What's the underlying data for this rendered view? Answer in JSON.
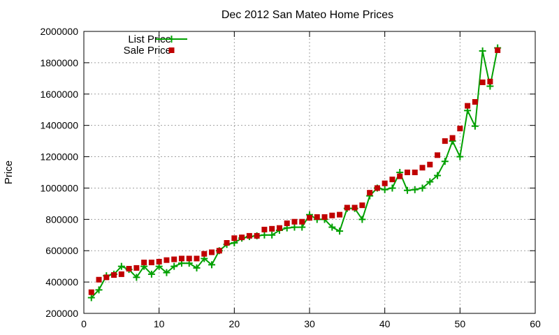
{
  "chart_data": {
    "type": "line",
    "title": "Dec 2012 San Mateo Home Prices",
    "xlabel": "",
    "ylabel": "Price",
    "xlim": [
      0,
      60
    ],
    "ylim": [
      200000,
      2000000
    ],
    "x_ticks": [
      "0",
      "10",
      "20",
      "30",
      "40",
      "50",
      "60"
    ],
    "y_ticks": [
      "200000",
      "400000",
      "600000",
      "800000",
      "1000000",
      "1200000",
      "1400000",
      "1600000",
      "1800000",
      "2000000"
    ],
    "grid": true,
    "legend_position": "top-left",
    "series": [
      {
        "name": "List Price",
        "style": "line-with-plus-markers",
        "color": "#00a000",
        "x": [
          1,
          2,
          3,
          4,
          5,
          6,
          7,
          8,
          9,
          10,
          11,
          12,
          13,
          14,
          15,
          16,
          17,
          18,
          19,
          20,
          21,
          22,
          23,
          24,
          25,
          26,
          27,
          28,
          29,
          30,
          31,
          32,
          33,
          34,
          35,
          36,
          37,
          38,
          39,
          40,
          41,
          42,
          43,
          44,
          45,
          46,
          47,
          48,
          49,
          50,
          51,
          52,
          53,
          54,
          55
        ],
        "y": [
          300000,
          350000,
          440000,
          450000,
          500000,
          480000,
          430000,
          500000,
          450000,
          500000,
          460000,
          500000,
          520000,
          520000,
          490000,
          550000,
          510000,
          600000,
          640000,
          650000,
          680000,
          690000,
          695000,
          700000,
          700000,
          730000,
          745000,
          750000,
          750000,
          830000,
          800000,
          800000,
          750000,
          725000,
          870000,
          870000,
          800000,
          950000,
          1000000,
          990000,
          1000000,
          1100000,
          985000,
          990000,
          1000000,
          1040000,
          1080000,
          1170000,
          1300000,
          1200000,
          1495000,
          1395000,
          1875000,
          1650000,
          1895000
        ]
      },
      {
        "name": "Sale Price",
        "style": "square-markers",
        "color": "#c00000",
        "x": [
          1,
          2,
          3,
          4,
          5,
          6,
          7,
          8,
          9,
          10,
          11,
          12,
          13,
          14,
          15,
          16,
          17,
          18,
          19,
          20,
          21,
          22,
          23,
          24,
          25,
          26,
          27,
          28,
          29,
          30,
          31,
          32,
          33,
          34,
          35,
          36,
          37,
          38,
          39,
          40,
          41,
          42,
          43,
          44,
          45,
          46,
          47,
          48,
          49,
          50,
          51,
          52,
          53,
          54,
          55
        ],
        "y": [
          335000,
          415000,
          430000,
          445000,
          450000,
          485000,
          490000,
          525000,
          525000,
          530000,
          540000,
          545000,
          550000,
          550000,
          550000,
          580000,
          590000,
          600000,
          650000,
          680000,
          685000,
          695000,
          695000,
          735000,
          740000,
          745000,
          775000,
          785000,
          785000,
          810000,
          815000,
          815000,
          825000,
          830000,
          875000,
          875000,
          890000,
          970000,
          1000000,
          1030000,
          1055000,
          1075000,
          1100000,
          1100000,
          1130000,
          1150000,
          1210000,
          1300000,
          1320000,
          1380000,
          1525000,
          1550000,
          1675000,
          1680000,
          1880000
        ]
      }
    ]
  }
}
